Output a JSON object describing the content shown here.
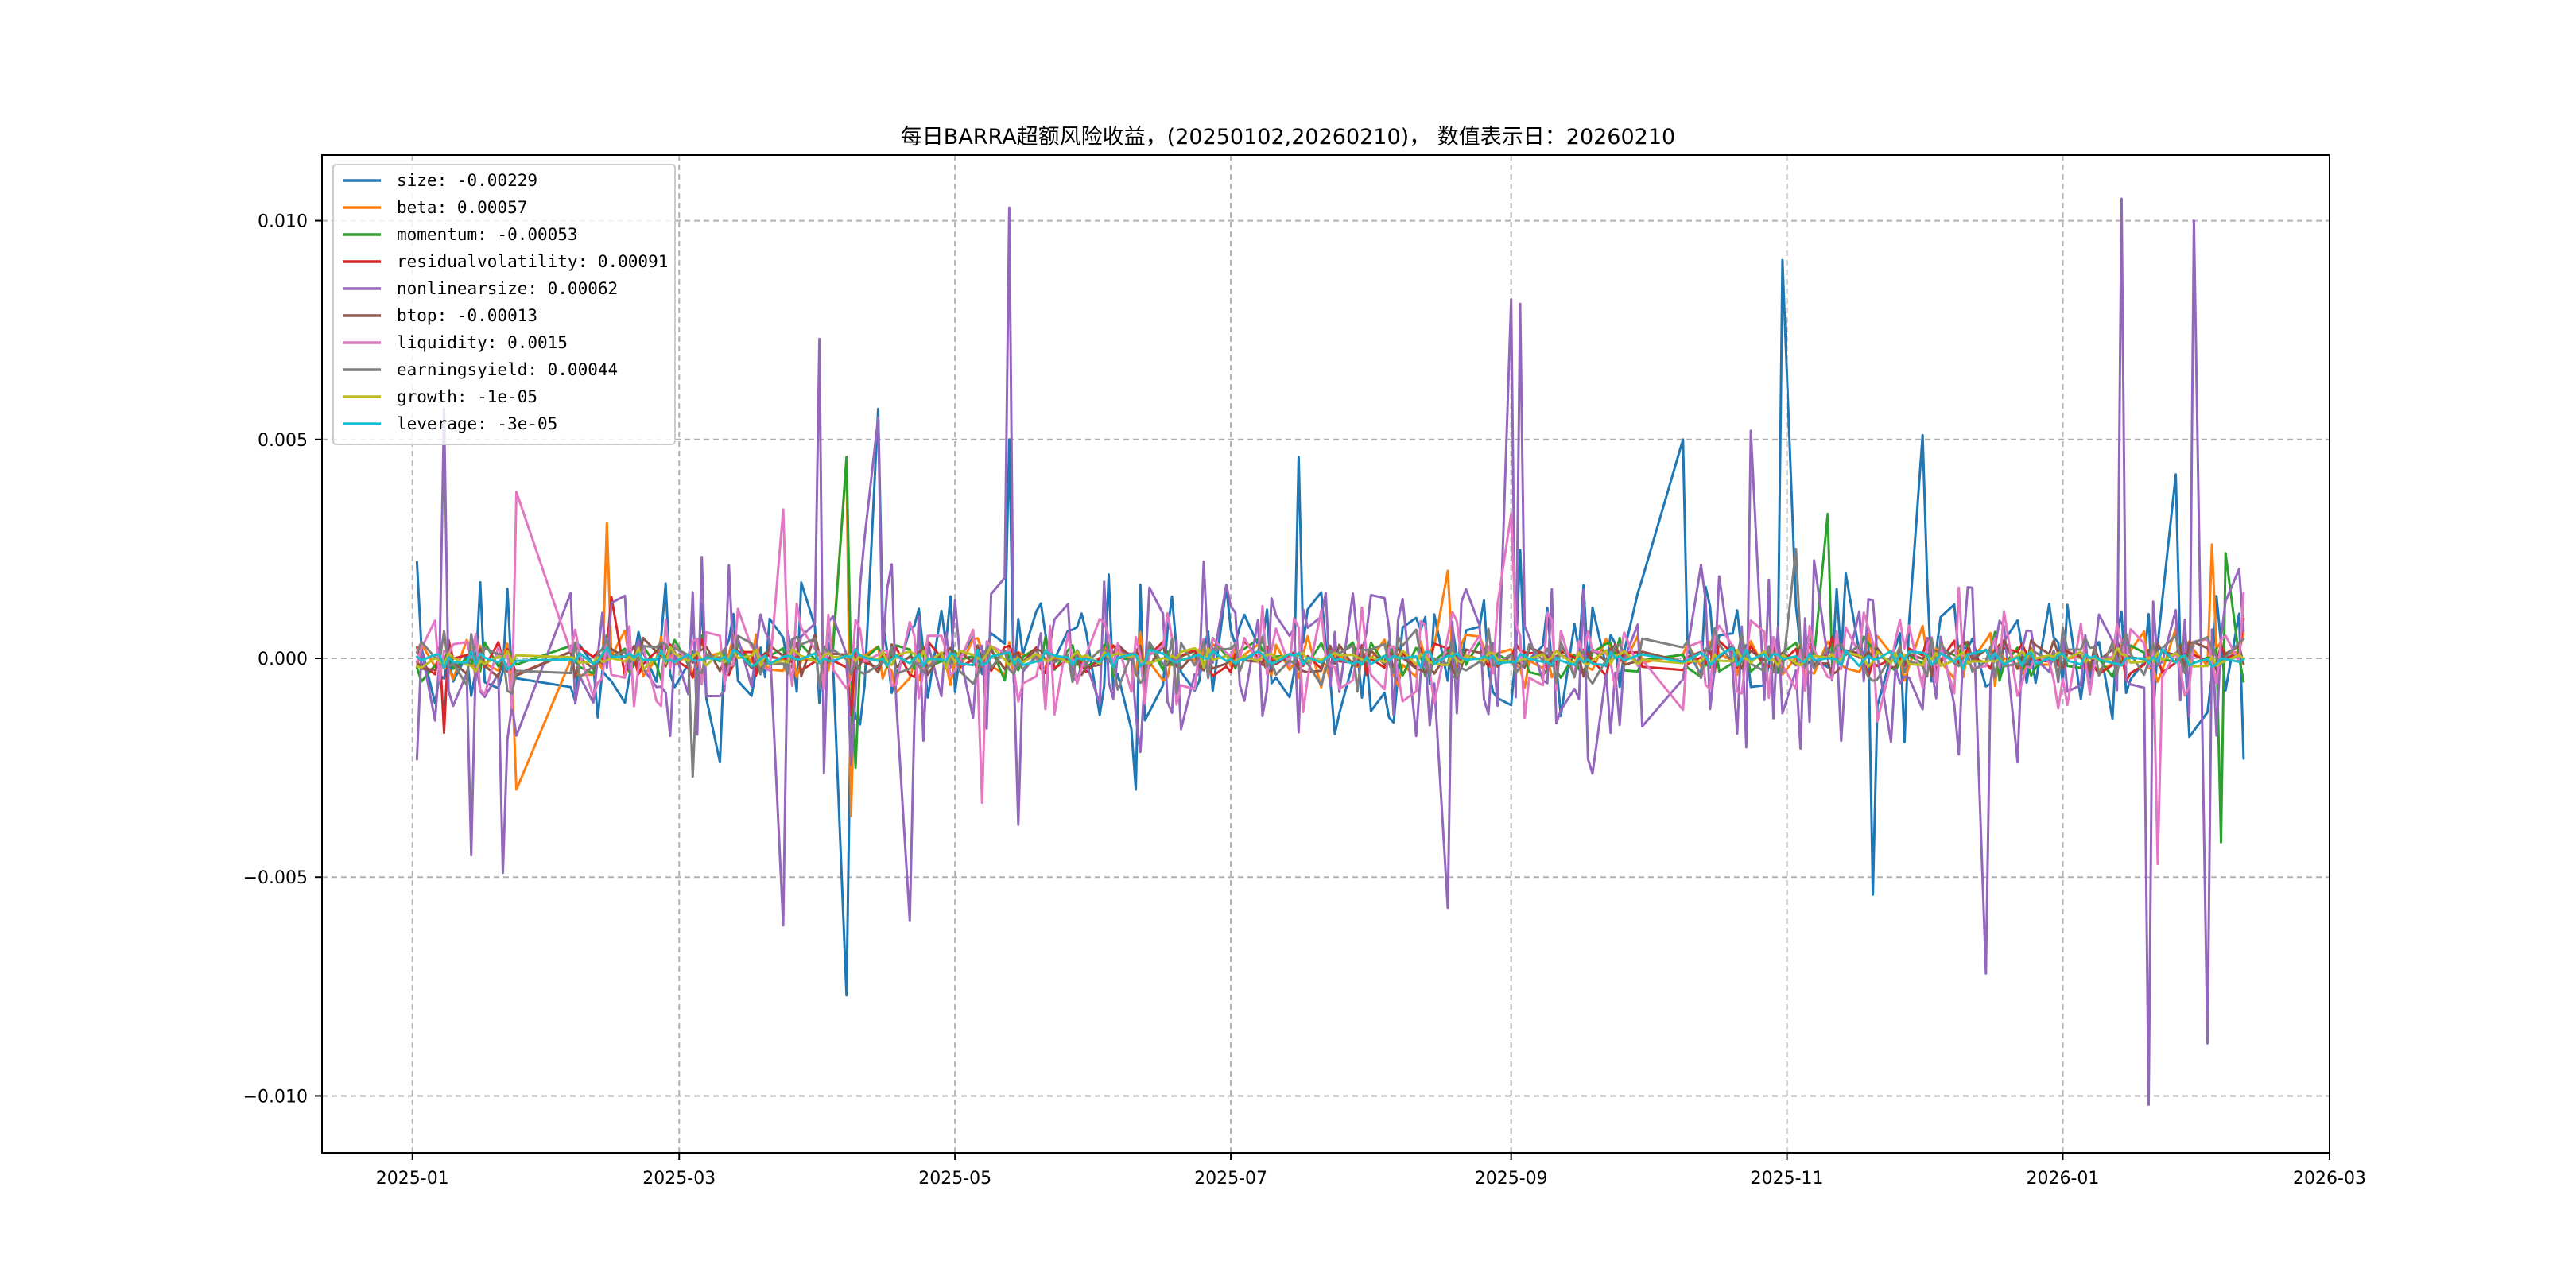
{
  "chart_data": {
    "type": "line",
    "title": "每日BARRA超额风险收益，(20250102,20260210)，  数值表示日：20260210",
    "xlabel": "",
    "ylabel": "",
    "xlim": [
      "2024-12-12",
      "2026-03-01"
    ],
    "ylim": [
      -0.0113,
      0.0115
    ],
    "x_ticks": [
      "2025-01",
      "2025-03",
      "2025-05",
      "2025-07",
      "2025-09",
      "2025-11",
      "2026-01",
      "2026-03"
    ],
    "y_ticks": [
      "0.010",
      "0.005",
      "0.000",
      "−0.005",
      "−0.010"
    ],
    "y_tick_values": [
      0.01,
      0.005,
      0.0,
      -0.005,
      -0.01
    ],
    "date_start": "2025-01-02",
    "date_end": "2026-02-10",
    "grid": true,
    "legend_position": "upper-left",
    "series": [
      {
        "name": "size: -0.00229",
        "color": "#1f77b4",
        "amp": 0.0026,
        "seed": 11,
        "spikes": [
          [
            "2025-01-02",
            0.0022
          ],
          [
            "2025-04-07",
            -0.0077
          ],
          [
            "2025-04-14",
            0.0057
          ],
          [
            "2025-05-13",
            0.005
          ],
          [
            "2025-06-10",
            -0.003
          ],
          [
            "2025-07-16",
            0.0046
          ],
          [
            "2025-10-09",
            0.005
          ],
          [
            "2025-10-31",
            0.0091
          ],
          [
            "2025-11-20",
            -0.0054
          ],
          [
            "2025-12-01",
            0.0051
          ],
          [
            "2026-01-26",
            0.0042
          ],
          [
            "2026-02-10",
            -0.00229
          ]
        ]
      },
      {
        "name": "beta: 0.00057",
        "color": "#ff7f0e",
        "amp": 0.0009,
        "seed": 23,
        "spikes": [
          [
            "2025-01-27",
            -0.003
          ],
          [
            "2025-02-13",
            0.0031
          ],
          [
            "2025-04-07",
            0.0045
          ],
          [
            "2025-04-08",
            -0.0036
          ],
          [
            "2025-08-18",
            0.002
          ],
          [
            "2026-02-03",
            0.0026
          ],
          [
            "2026-02-10",
            0.00057
          ]
        ]
      },
      {
        "name": "momentum: -0.00053",
        "color": "#2ca02c",
        "amp": 0.0007,
        "seed": 37,
        "spikes": [
          [
            "2025-04-07",
            0.0046
          ],
          [
            "2025-04-09",
            -0.0025
          ],
          [
            "2025-11-10",
            0.0033
          ],
          [
            "2026-02-05",
            -0.0042
          ],
          [
            "2026-02-06",
            0.0024
          ],
          [
            "2026-02-10",
            -0.00053
          ]
        ]
      },
      {
        "name": "residualvolatility: 0.00091",
        "color": "#d62728",
        "amp": 0.0006,
        "seed": 41,
        "spikes": [
          [
            "2025-01-08",
            -0.0017
          ],
          [
            "2025-02-14",
            0.0014
          ],
          [
            "2025-04-08",
            -0.0013
          ],
          [
            "2026-02-10",
            0.00091
          ]
        ]
      },
      {
        "name": "nonlinearsize: 0.00062",
        "color": "#9467bd",
        "amp": 0.0033,
        "seed": 53,
        "spikes": [
          [
            "2025-01-08",
            0.0057
          ],
          [
            "2025-01-14",
            -0.0045
          ],
          [
            "2025-01-21",
            -0.0049
          ],
          [
            "2025-03-24",
            -0.0061
          ],
          [
            "2025-04-01",
            0.0073
          ],
          [
            "2025-04-14",
            0.0055
          ],
          [
            "2025-04-21",
            -0.006
          ],
          [
            "2025-05-13",
            0.0103
          ],
          [
            "2025-05-15",
            -0.0038
          ],
          [
            "2025-08-18",
            -0.0057
          ],
          [
            "2025-09-01",
            0.0082
          ],
          [
            "2025-09-03",
            0.0081
          ],
          [
            "2025-10-24",
            0.0052
          ],
          [
            "2025-12-15",
            -0.0072
          ],
          [
            "2026-01-14",
            0.0105
          ],
          [
            "2026-01-20",
            -0.0102
          ],
          [
            "2026-01-30",
            0.01
          ],
          [
            "2026-02-02",
            -0.0088
          ],
          [
            "2026-02-10",
            0.00062
          ]
        ]
      },
      {
        "name": "btop: -0.00013",
        "color": "#8c564b",
        "amp": 0.0006,
        "seed": 67,
        "spikes": [
          [
            "2026-02-10",
            -0.00013
          ]
        ]
      },
      {
        "name": "liquidity: 0.0015",
        "color": "#e377c2",
        "amp": 0.0017,
        "seed": 71,
        "spikes": [
          [
            "2025-01-27",
            0.0038
          ],
          [
            "2025-03-24",
            0.0034
          ],
          [
            "2025-05-07",
            -0.0033
          ],
          [
            "2025-09-01",
            0.0033
          ],
          [
            "2026-01-22",
            -0.0047
          ],
          [
            "2026-02-10",
            0.0015
          ]
        ]
      },
      {
        "name": "earningsyield: 0.00044",
        "color": "#7f7f7f",
        "amp": 0.0009,
        "seed": 83,
        "spikes": [
          [
            "2025-03-04",
            -0.0027
          ],
          [
            "2025-11-03",
            0.0025
          ],
          [
            "2026-02-10",
            0.00044
          ]
        ]
      },
      {
        "name": "growth: -1e-05",
        "color": "#bcbd22",
        "amp": 0.0003,
        "seed": 97,
        "spikes": [
          [
            "2026-02-10",
            -1e-05
          ]
        ]
      },
      {
        "name": "leverage: -3e-05",
        "color": "#17becf",
        "amp": 0.0003,
        "seed": 101,
        "spikes": [
          [
            "2026-02-10",
            -3e-05
          ]
        ]
      }
    ]
  }
}
